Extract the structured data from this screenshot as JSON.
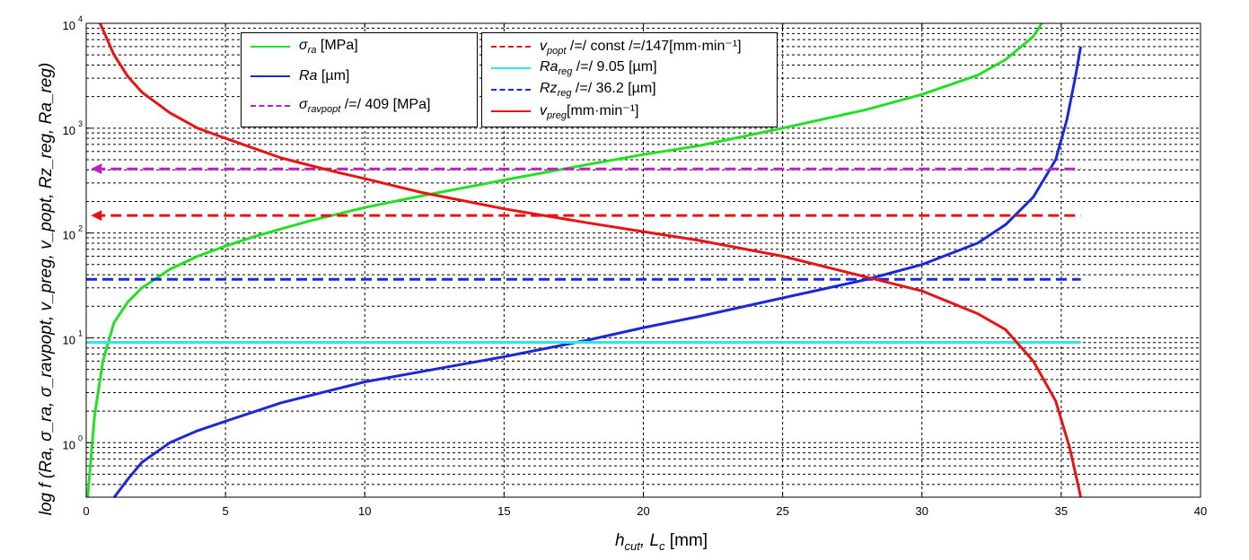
{
  "chart_data": {
    "type": "line",
    "xlabel": "h_cut, L_c [mm]",
    "ylabel": "log f (Ra, σ_ra, σ_ravpopt, v_preg, v_popt, Rz_reg, Ra_reg)",
    "xlim": [
      0,
      40
    ],
    "ylim_log10": [
      -0.52,
      4
    ],
    "yscale": "log",
    "grid": true,
    "x_ticks": [
      0,
      5,
      10,
      15,
      20,
      25,
      30,
      35,
      40
    ],
    "y_ticks": [
      {
        "base": "10",
        "exp": "0",
        "value": 1
      },
      {
        "base": "10",
        "exp": "1",
        "value": 10
      },
      {
        "base": "10",
        "exp": "2",
        "value": 100
      },
      {
        "base": "10",
        "exp": "3",
        "value": 1000
      },
      {
        "base": "10",
        "exp": "4",
        "value": 10000
      }
    ],
    "series": [
      {
        "name": "σ_ra [MPa]",
        "color": "#22e022",
        "style": "solid",
        "x": [
          0.05,
          0.3,
          0.6,
          1,
          1.5,
          2,
          3,
          4,
          5,
          6,
          8,
          10,
          12,
          15,
          18,
          20,
          22,
          25,
          28,
          30,
          32,
          33,
          34,
          34.3
        ],
        "y": [
          0.3,
          1.8,
          6,
          14,
          22,
          30,
          45,
          60,
          75,
          92,
          130,
          175,
          225,
          320,
          450,
          560,
          680,
          1000,
          1500,
          2100,
          3200,
          4500,
          7500,
          10000
        ]
      },
      {
        "name": "Ra [µm]",
        "color": "#1a2ad6",
        "style": "solid",
        "x": [
          1,
          1.5,
          2,
          3,
          4,
          5,
          7,
          10,
          13,
          15,
          18,
          20,
          22,
          25,
          28,
          30,
          32,
          33,
          34,
          34.8,
          35.2,
          35.5,
          35.7
        ],
        "y": [
          0.3,
          0.45,
          0.65,
          1,
          1.3,
          1.6,
          2.4,
          3.8,
          5.3,
          6.6,
          9.5,
          12.5,
          16,
          24,
          36,
          50,
          80,
          120,
          220,
          500,
          1200,
          3000,
          6000
        ]
      },
      {
        "name": "σ_ravpopt = 409 [MPa]",
        "color": "#c21fc2",
        "style": "dashed",
        "x": [
          0.3,
          35.7
        ],
        "y": [
          409,
          409
        ]
      },
      {
        "name": "v_popt = const = 147 [mm·min⁻¹]",
        "color": "#e81414",
        "style": "dashed",
        "x": [
          0.3,
          35.7
        ],
        "y": [
          147,
          147
        ]
      },
      {
        "name": "Ra_reg = 9.05 [µm]",
        "color": "#2fe6e6",
        "style": "solid",
        "x": [
          0,
          35.7
        ],
        "y": [
          9.05,
          9.05
        ]
      },
      {
        "name": "Rz_reg = 36.2 [µm]",
        "color": "#1a2ad6",
        "style": "dashed",
        "x": [
          0,
          35.7
        ],
        "y": [
          36.2,
          36.2
        ]
      },
      {
        "name": "v_preg [mm·min⁻¹]",
        "color": "#e81414",
        "style": "solid",
        "x": [
          0.5,
          1,
          1.5,
          2,
          3,
          4,
          5,
          7,
          9,
          10,
          12,
          15,
          18,
          20,
          22,
          25,
          28,
          30,
          32,
          33,
          34,
          34.8,
          35.3,
          35.6,
          35.7
        ],
        "y": [
          10000,
          5000,
          3100,
          2200,
          1400,
          1000,
          800,
          520,
          380,
          330,
          245,
          170,
          125,
          103,
          85,
          60,
          38,
          28,
          17,
          12,
          6,
          2.5,
          0.9,
          0.4,
          0.3
        ]
      }
    ]
  },
  "legend_left": [
    {
      "sym": "σ",
      "sub": "ra",
      "text": " [MPa]"
    },
    {
      "sym": "Ra",
      "sub": "",
      "text": " [µm]"
    },
    {
      "sym": "σ",
      "sub": "ravpopt",
      "text": " /=/ 409 [MPa]"
    }
  ],
  "legend_right": [
    {
      "sym": "v",
      "sub": "popt",
      "text": " /=/ const /=/147[mm·min⁻¹]"
    },
    {
      "sym": "Ra",
      "sub": "reg",
      "text": " /=/ 9.05 [µm]"
    },
    {
      "sym": "Rz",
      "sub": "reg",
      "text": " /=/ 36.2 [µm]"
    },
    {
      "sym": "v",
      "sub": "preg",
      "text": "[mm·min⁻¹]"
    }
  ],
  "labels": {
    "x_axis_title": "h",
    "x_axis_sub1": "cut",
    "x_axis_mid": ", L",
    "x_axis_sub2": "c",
    "x_axis_unit": " [mm]",
    "y_axis_title": "log f (Ra, σ_ra, σ_ravpopt, v_preg, v_popt, Rz_reg, Ra_reg)"
  }
}
